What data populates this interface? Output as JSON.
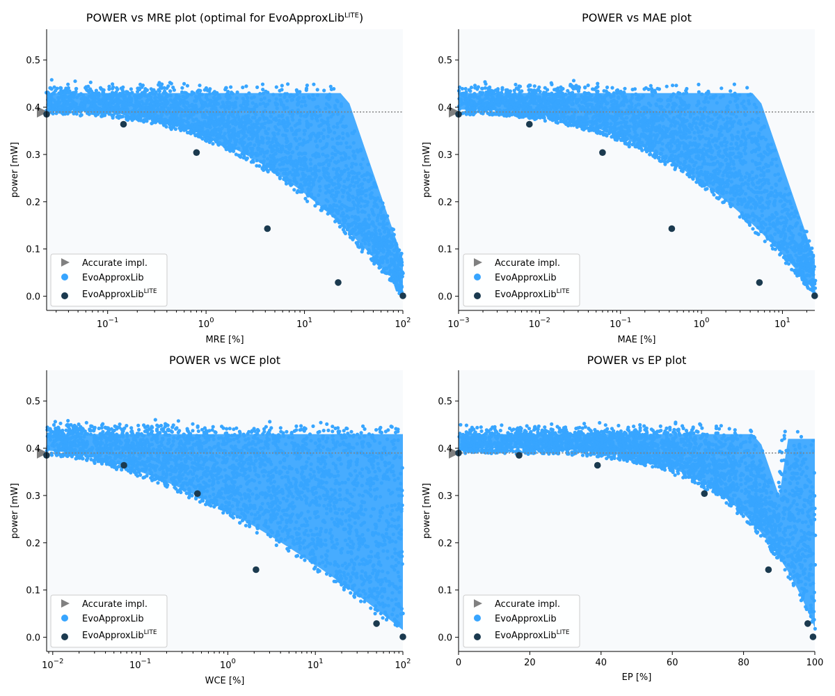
{
  "colors": {
    "cloud": "#37a5ff",
    "lite": "#1b3a4f",
    "accurate": "#808080",
    "plot_bg": "#f8fafc",
    "refline": "#808080"
  },
  "legend": {
    "accurate": "Accurate impl.",
    "evo": "EvoApproxLib",
    "lite_base": "EvoApproxLib",
    "lite_sup": "LITE"
  },
  "charts": [
    {
      "id": "mre",
      "type": "scatter",
      "title": "POWER vs MRE plot (optimal for EvoApproxLib",
      "title_sup": "LITE",
      "title_end": ")",
      "xlabel": "MRE [%]",
      "ylabel": "power [mW]",
      "xscale": "log",
      "xlim_exp": [
        -1.62,
        2.0
      ],
      "x_ticks": [
        {
          "exp": -1,
          "label": "10",
          "sup": "−1"
        },
        {
          "exp": 0,
          "label": "10",
          "sup": "0"
        },
        {
          "exp": 1,
          "label": "10",
          "sup": "1"
        },
        {
          "exp": 2,
          "label": "10",
          "sup": "2"
        }
      ],
      "ylim": [
        -0.03,
        0.565
      ],
      "y_ticks": [
        "0.0",
        "0.1",
        "0.2",
        "0.3",
        "0.4",
        "0.5"
      ],
      "accurate_power": 0.39,
      "lite_points": [
        [
          0.024,
          0.385
        ],
        [
          0.145,
          0.364
        ],
        [
          0.8,
          0.304
        ],
        [
          4.2,
          0.143
        ],
        [
          22,
          0.029
        ],
        [
          100,
          0.001
        ]
      ]
    },
    {
      "id": "mae",
      "type": "scatter",
      "title": "POWER vs MAE plot",
      "xlabel": "MAE [%]",
      "ylabel": "power [mW]",
      "xscale": "log",
      "xlim_exp": [
        -3.0,
        1.4
      ],
      "x_ticks": [
        {
          "exp": -3,
          "label": "10",
          "sup": "−3"
        },
        {
          "exp": -2,
          "label": "10",
          "sup": "−2"
        },
        {
          "exp": -1,
          "label": "10",
          "sup": "−1"
        },
        {
          "exp": 0,
          "label": "10",
          "sup": "0"
        },
        {
          "exp": 1,
          "label": "10",
          "sup": "1"
        }
      ],
      "ylim": [
        -0.03,
        0.565
      ],
      "y_ticks": [
        "0.0",
        "0.1",
        "0.2",
        "0.3",
        "0.4",
        "0.5"
      ],
      "accurate_power": 0.39,
      "lite_points": [
        [
          0.001,
          0.385
        ],
        [
          0.0075,
          0.364
        ],
        [
          0.06,
          0.304
        ],
        [
          0.43,
          0.143
        ],
        [
          5.2,
          0.029
        ],
        [
          25,
          0.001
        ]
      ]
    },
    {
      "id": "wce",
      "type": "scatter",
      "title": "POWER vs WCE plot",
      "xlabel": "WCE [%]",
      "ylabel": "power [mW]",
      "xscale": "log",
      "xlim_exp": [
        -2.07,
        2.0
      ],
      "x_ticks": [
        {
          "exp": -2,
          "label": "10",
          "sup": "−2"
        },
        {
          "exp": -1,
          "label": "10",
          "sup": "−1"
        },
        {
          "exp": 0,
          "label": "10",
          "sup": "0"
        },
        {
          "exp": 1,
          "label": "10",
          "sup": "1"
        },
        {
          "exp": 2,
          "label": "10",
          "sup": "2"
        }
      ],
      "ylim": [
        -0.03,
        0.565
      ],
      "y_ticks": [
        "0.0",
        "0.1",
        "0.2",
        "0.3",
        "0.4",
        "0.5"
      ],
      "accurate_power": 0.39,
      "lite_points": [
        [
          0.0085,
          0.385
        ],
        [
          0.065,
          0.364
        ],
        [
          0.45,
          0.304
        ],
        [
          2.1,
          0.143
        ],
        [
          50,
          0.029
        ],
        [
          100,
          0.001
        ]
      ]
    },
    {
      "id": "ep",
      "type": "scatter",
      "title": "POWER vs EP plot",
      "xlabel": "EP [%]",
      "ylabel": "power [mW]",
      "xscale": "linear",
      "xlim": [
        0,
        100
      ],
      "x_ticks_lin": [
        "0",
        "20",
        "40",
        "60",
        "80",
        "100"
      ],
      "ylim": [
        -0.03,
        0.565
      ],
      "y_ticks": [
        "0.0",
        "0.1",
        "0.2",
        "0.3",
        "0.4",
        "0.5"
      ],
      "accurate_power": 0.39,
      "lite_points": [
        [
          0,
          0.39
        ],
        [
          17,
          0.385
        ],
        [
          39,
          0.364
        ],
        [
          69,
          0.304
        ],
        [
          87,
          0.143
        ],
        [
          98,
          0.029
        ],
        [
          99.5,
          0.001
        ]
      ]
    }
  ]
}
